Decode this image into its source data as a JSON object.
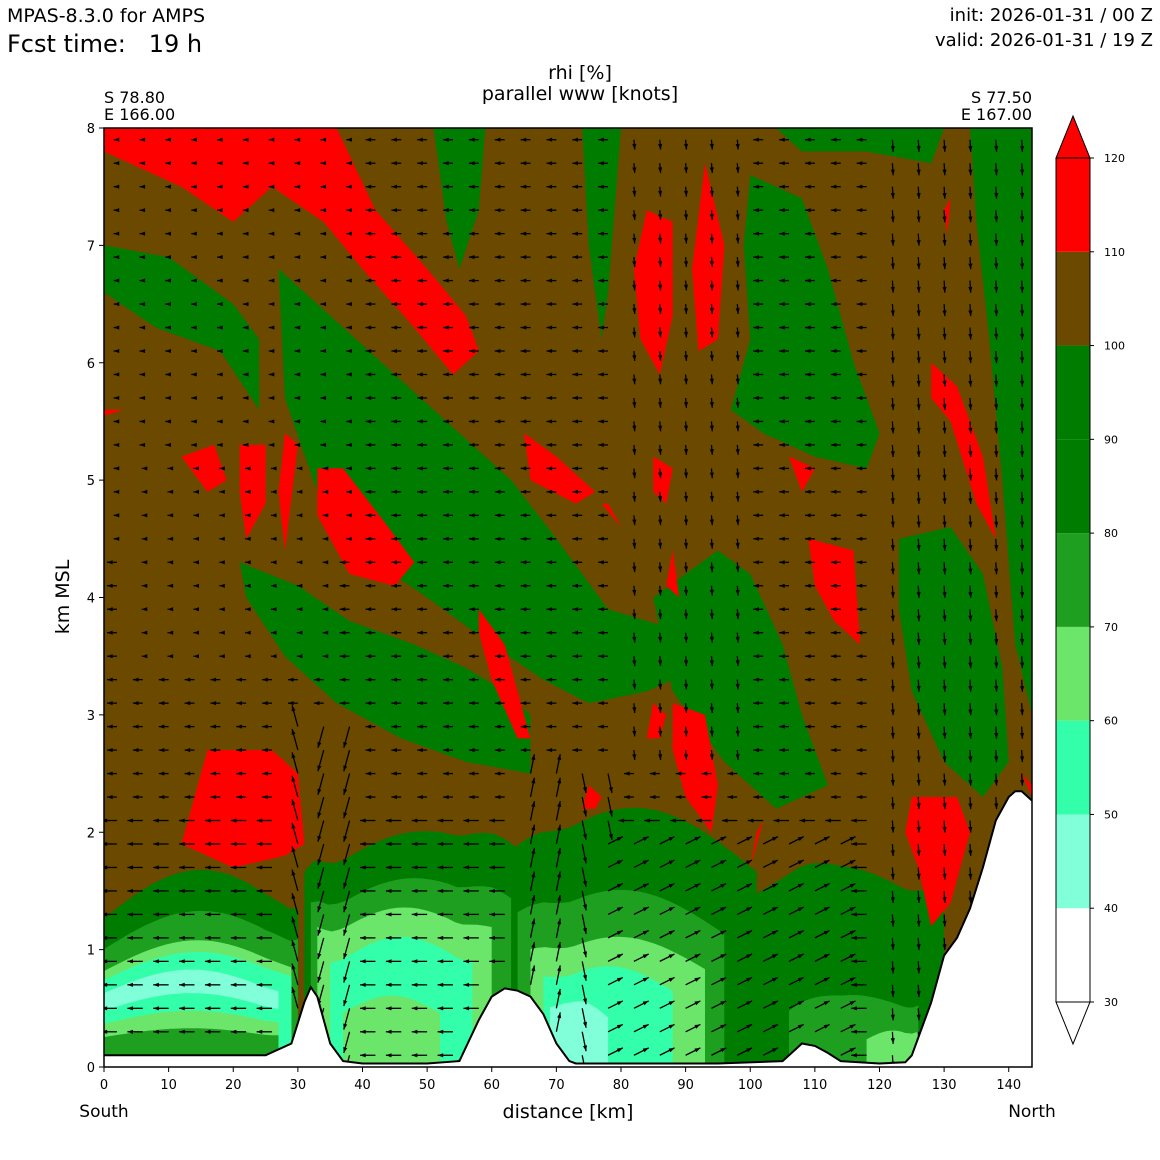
{
  "header": {
    "model": "MPAS-8.3.0 for AMPS",
    "fcst_label": "Fcst time:",
    "fcst_value": "19 h",
    "init": "init: 2026-01-31 / 00 Z",
    "valid": "valid: 2026-01-31 / 19 Z"
  },
  "titles": {
    "line1": "rhi [%]",
    "line2": "parallel www [knots]"
  },
  "corners": {
    "left_lat": "S 78.80",
    "left_lon": "E 166.00",
    "right_lat": "S 77.50",
    "right_lon": "E 167.00"
  },
  "axes": {
    "xlabel": "distance [km]",
    "ylabel": "km MSL",
    "x_left_end": "South",
    "x_right_end": "North",
    "xlim": [
      0,
      143.6
    ],
    "ylim": [
      0,
      8
    ],
    "xticks": [
      0,
      10,
      20,
      30,
      40,
      50,
      60,
      70,
      80,
      90,
      100,
      110,
      120,
      130,
      140
    ],
    "yticks": [
      0,
      1,
      2,
      3,
      4,
      5,
      6,
      7,
      8
    ]
  },
  "colors": {
    "brown": "#6b4a00",
    "green_dark": "#007c00",
    "green_mid": "#1f9f1f",
    "green_light": "#6be66b",
    "aqua": "#33ffaa",
    "aqua_light": "#80ffd9",
    "red": "#ff0000",
    "terrain_line": "#000000"
  },
  "colorbar": {
    "ticks": [
      "30",
      "40",
      "50",
      "60",
      "70",
      "80",
      "90",
      "100",
      "110",
      "120"
    ],
    "bins": [
      {
        "from": 30,
        "to": 40,
        "color": "#ffffff"
      },
      {
        "from": 40,
        "to": 50,
        "color": "#80ffd9"
      },
      {
        "from": 50,
        "to": 60,
        "color": "#33ffaa"
      },
      {
        "from": 60,
        "to": 70,
        "color": "#6be66b"
      },
      {
        "from": 70,
        "to": 80,
        "color": "#1f9f1f"
      },
      {
        "from": 80,
        "to": 90,
        "color": "#007c00"
      },
      {
        "from": 90,
        "to": 100,
        "color": "#007c00"
      },
      {
        "from": 100,
        "to": 110,
        "color": "#6b4a00"
      },
      {
        "from": 110,
        "to": 120,
        "color": "#ff0000"
      }
    ],
    "extend": "both"
  },
  "chart_data": {
    "type": "heatmap",
    "variable": "rhi [%]",
    "overlay": "parallel www [knots]",
    "xlabel": "distance [km]",
    "ylabel": "km MSL",
    "xlim": [
      0,
      143.6
    ],
    "ylim": [
      0,
      8
    ],
    "terrain": {
      "x": [
        0,
        2,
        25,
        29,
        31,
        32,
        33,
        35,
        37,
        40,
        50,
        55,
        58,
        60,
        62,
        64,
        66,
        68,
        70,
        72,
        73,
        75,
        80,
        95,
        105,
        107,
        108,
        110,
        112,
        114,
        120,
        124,
        125,
        128,
        130,
        132,
        134,
        136,
        138,
        140,
        141,
        142,
        143.6
      ],
      "y": [
        0.1,
        0.1,
        0.1,
        0.2,
        0.55,
        0.68,
        0.6,
        0.2,
        0.05,
        0.03,
        0.03,
        0.05,
        0.4,
        0.6,
        0.67,
        0.65,
        0.6,
        0.45,
        0.2,
        0.05,
        0.03,
        0.03,
        0.03,
        0.03,
        0.05,
        0.15,
        0.2,
        0.18,
        0.12,
        0.05,
        0.03,
        0.04,
        0.1,
        0.55,
        0.95,
        1.1,
        1.35,
        1.7,
        2.1,
        2.3,
        2.35,
        2.35,
        2.27
      ]
    },
    "rhi_regions": [
      {
        "category": "100-110",
        "desc": "background above ~2.5 km"
      },
      {
        "category": "110-120",
        "centers": [
          [
            18,
            7.7
          ],
          [
            45,
            6.7
          ],
          [
            38,
            4.7
          ],
          [
            20,
            2.0
          ],
          [
            82,
            6.5
          ],
          [
            93,
            6.8
          ],
          [
            130,
            5.2
          ],
          [
            129,
            1.7
          ],
          [
            88,
            3.0
          ],
          [
            115,
            4.3
          ],
          [
            75,
            4.0
          ],
          [
            70,
            5.3
          ],
          [
            80,
            4.8
          ],
          [
            86,
            5.1
          ],
          [
            86,
            4.2
          ]
        ]
      },
      {
        "category": "80-100",
        "centers": [
          [
            35,
            5.6
          ],
          [
            60,
            3.5
          ],
          [
            85,
            3.8
          ],
          [
            115,
            6.0
          ],
          [
            130,
            3.2
          ],
          [
            58,
            4.7
          ],
          [
            55,
            7.6
          ]
        ]
      },
      {
        "category": "40-80",
        "desc": "low-level moist layers near terrain, 0-1.5 km"
      }
    ],
    "wind_vectors": {
      "desc": "grid of arrows along section, westward (right-to-left) aloft, strong near-vertical flow over ridges at x≈32 and x≈72 km",
      "x_spacing_km": 4,
      "y_spacing_km": 0.2
    }
  }
}
